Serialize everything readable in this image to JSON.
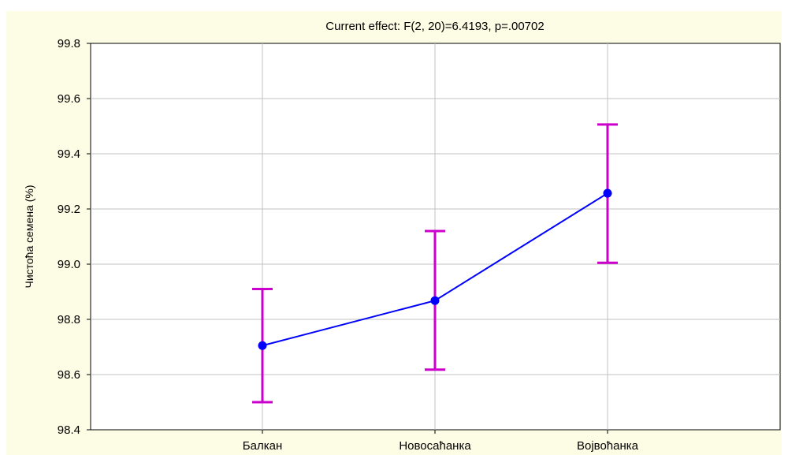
{
  "page_title": "",
  "chart_data": {
    "type": "line",
    "title": "Current effect: F(2, 20)=6.4193, p=.00702",
    "xlabel": "",
    "ylabel": "Чистоћа семена (%)",
    "categories": [
      "Балкан",
      "Новосаћанка",
      "Војвоћанка"
    ],
    "series": [
      {
        "values": [
          98.705,
          98.868,
          99.257
        ],
        "ci_lower": [
          98.5,
          98.618,
          99.005
        ],
        "ci_upper": [
          98.91,
          99.12,
          99.506
        ]
      }
    ],
    "ylim": [
      98.4,
      99.8
    ],
    "yticks": [
      "98.4",
      "98.6",
      "98.8",
      "99.0",
      "99.2",
      "99.4",
      "99.6",
      "99.8"
    ],
    "grid": true,
    "colors": {
      "line": "#0000ff",
      "marker": "#0000ff",
      "error_bar": "#cc00cc",
      "grid": "#c0c0c0",
      "panel_background": "#fdfce4",
      "plot_background": "#ffffff"
    }
  }
}
